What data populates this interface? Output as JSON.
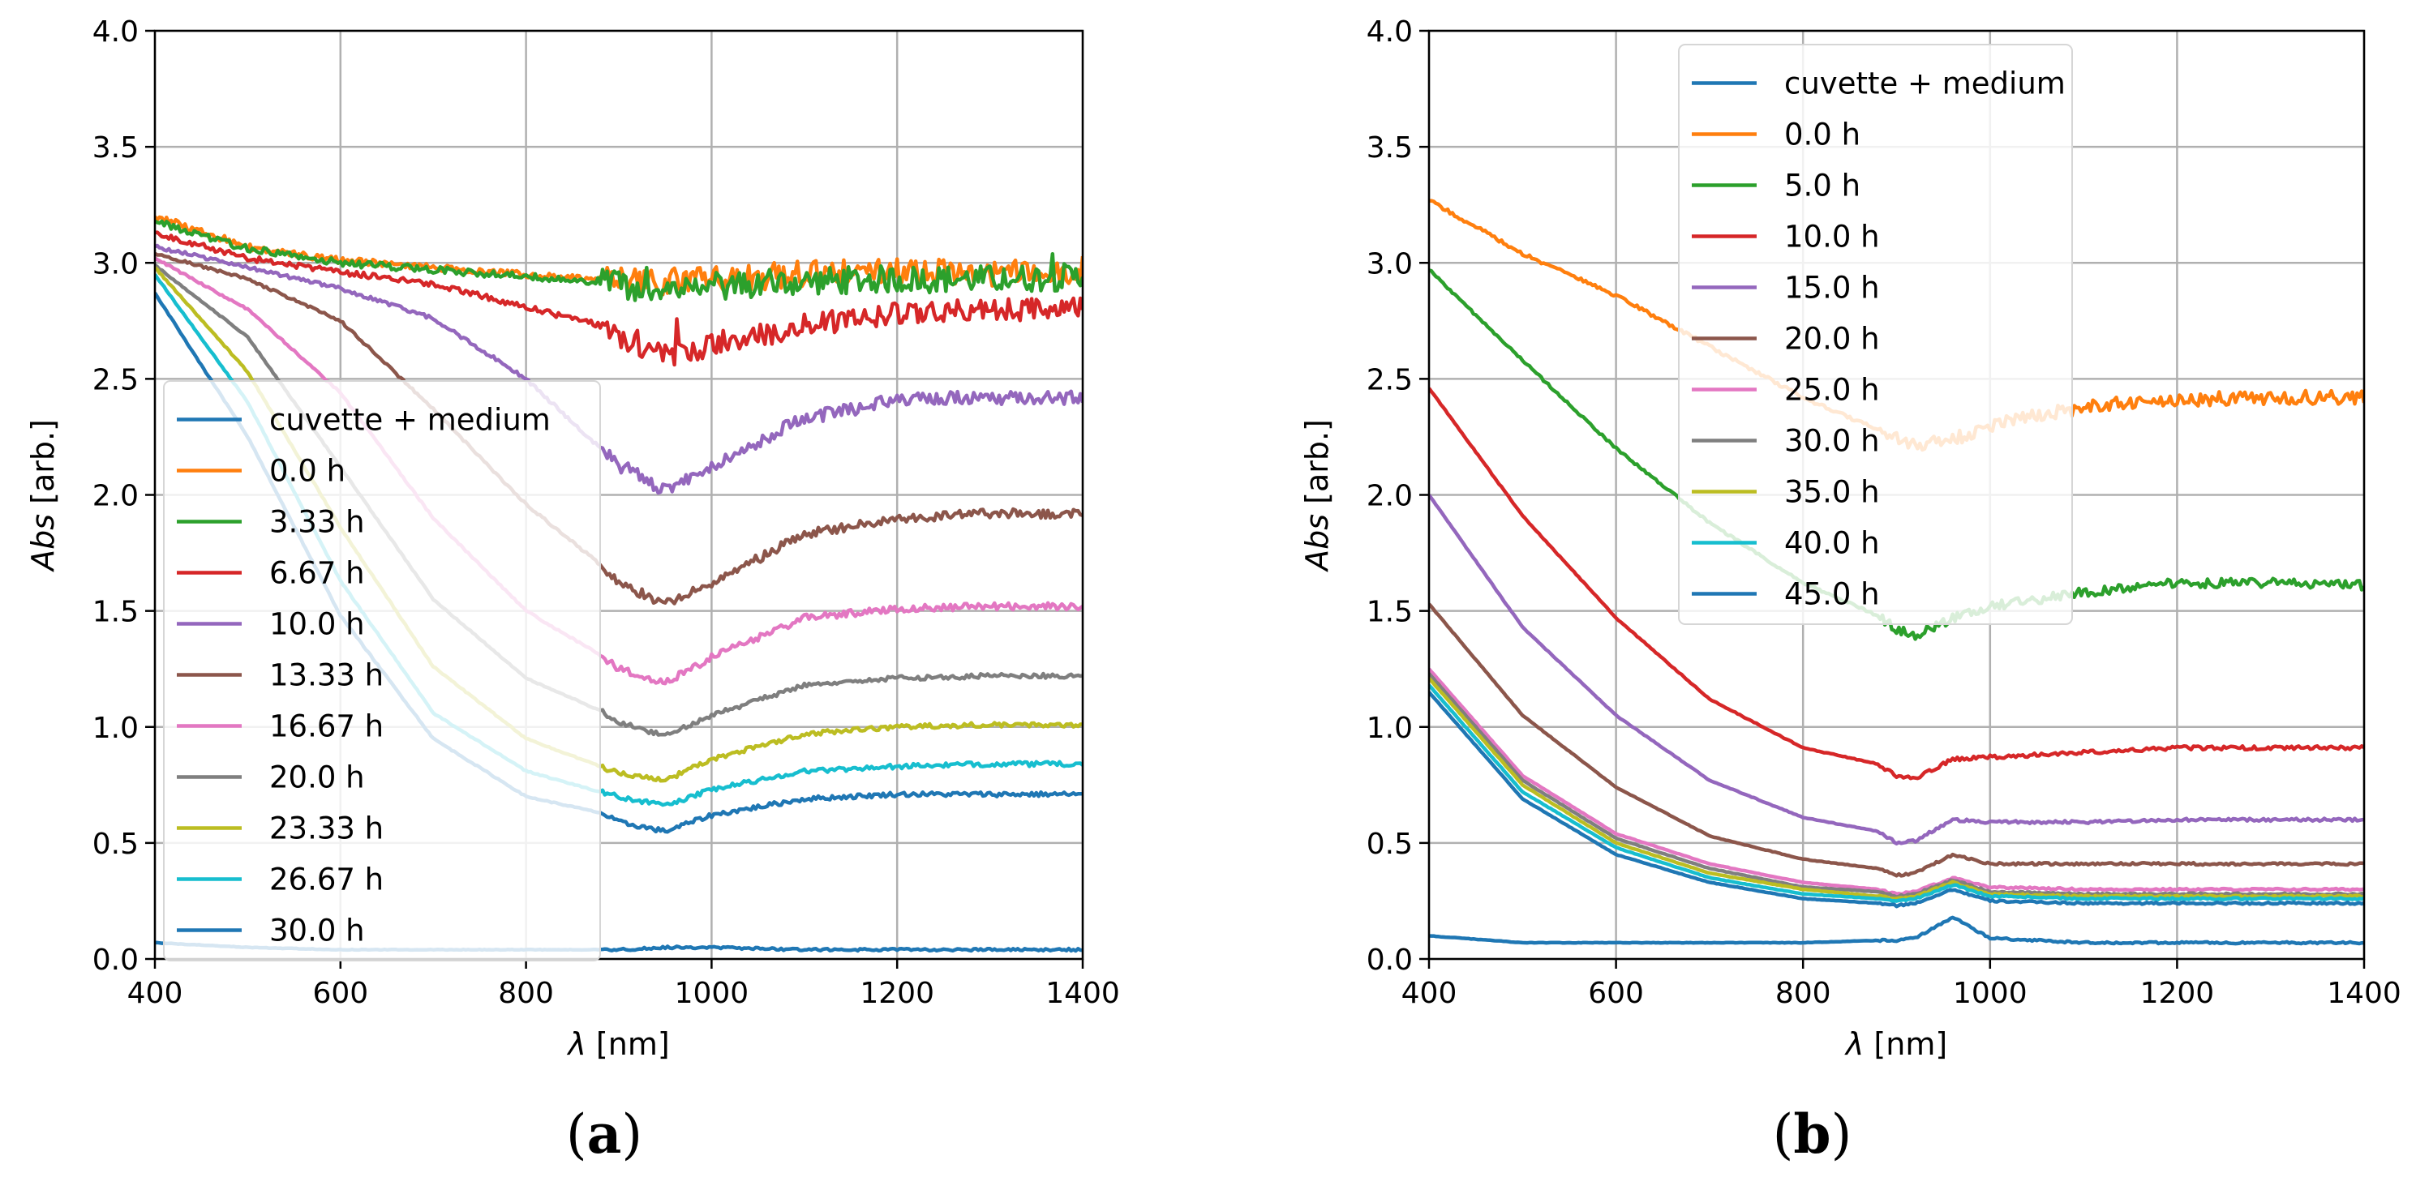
{
  "figure_labels": {
    "a": "a",
    "b": "b",
    "open": "(",
    "close": ")"
  },
  "chart_data": [
    {
      "id": "a",
      "type": "line",
      "title": "",
      "xlabel_symbol": "λ",
      "xlabel_unit": " [nm]",
      "ylabel_symbol": "Abs",
      "ylabel_unit": " [arb.]",
      "xlim": [
        400,
        1400
      ],
      "ylim": [
        0,
        4
      ],
      "xticks": [
        400,
        600,
        800,
        1000,
        1200,
        1400
      ],
      "xtick_labels": [
        "400",
        "600",
        "800",
        "1000",
        "1200",
        "1400"
      ],
      "yticks": [
        0,
        0.5,
        1,
        1.5,
        2,
        2.5,
        3,
        3.5,
        4
      ],
      "ytick_labels": [
        "0.0",
        "0.5",
        "1.0",
        "1.5",
        "2.0",
        "2.5",
        "3.0",
        "3.5",
        "4.0"
      ],
      "grid": true,
      "legend_position": "lower-left",
      "x": [
        400,
        500,
        600,
        700,
        800,
        880,
        900,
        950,
        1000,
        1100,
        1200,
        1300,
        1400
      ],
      "series": [
        {
          "name": "cuvette + medium",
          "color": "#1f77b4",
          "noise": 0.005,
          "values": [
            0.07,
            0.05,
            0.04,
            0.04,
            0.04,
            0.04,
            0.04,
            0.05,
            0.05,
            0.04,
            0.04,
            0.04,
            0.04
          ]
        },
        {
          "name": "0.0 h",
          "color": "#ff7f0e",
          "noise": 0.06,
          "values": [
            3.2,
            3.07,
            3.01,
            2.98,
            2.95,
            2.93,
            2.92,
            2.92,
            2.93,
            2.95,
            2.96,
            2.96,
            2.97
          ]
        },
        {
          "name": "3.33 h",
          "color": "#2ca02c",
          "noise": 0.06,
          "values": [
            3.18,
            3.06,
            3.0,
            2.97,
            2.94,
            2.92,
            2.9,
            2.89,
            2.9,
            2.92,
            2.93,
            2.93,
            2.94
          ]
        },
        {
          "name": "6.67 h",
          "color": "#d62728",
          "noise": 0.05,
          "values": [
            3.13,
            3.02,
            2.96,
            2.91,
            2.81,
            2.73,
            2.68,
            2.6,
            2.64,
            2.73,
            2.78,
            2.8,
            2.8
          ]
        },
        {
          "name": "10.0 h",
          "color": "#9467bd",
          "noise": 0.03,
          "values": [
            3.07,
            2.98,
            2.89,
            2.76,
            2.5,
            2.2,
            2.13,
            2.02,
            2.13,
            2.33,
            2.41,
            2.42,
            2.42
          ]
        },
        {
          "name": "13.33 h",
          "color": "#8c564b",
          "noise": 0.02,
          "values": [
            3.04,
            2.93,
            2.75,
            2.37,
            1.96,
            1.7,
            1.62,
            1.53,
            1.62,
            1.83,
            1.9,
            1.92,
            1.92
          ]
        },
        {
          "name": "16.67 h",
          "color": "#e377c2",
          "noise": 0.015,
          "values": [
            3.02,
            2.8,
            2.44,
            1.9,
            1.5,
            1.31,
            1.25,
            1.19,
            1.3,
            1.47,
            1.51,
            1.52,
            1.52
          ]
        },
        {
          "name": "20.0 h",
          "color": "#7f7f7f",
          "noise": 0.01,
          "values": [
            2.99,
            2.68,
            2.12,
            1.55,
            1.21,
            1.07,
            1.02,
            0.96,
            1.05,
            1.18,
            1.21,
            1.22,
            1.22
          ]
        },
        {
          "name": "23.33 h",
          "color": "#bcbd22",
          "noise": 0.01,
          "values": [
            2.98,
            2.53,
            1.86,
            1.26,
            0.95,
            0.83,
            0.8,
            0.77,
            0.86,
            0.97,
            1.0,
            1.01,
            1.01
          ]
        },
        {
          "name": "26.67 h",
          "color": "#17becf",
          "noise": 0.01,
          "values": [
            2.95,
            2.4,
            1.63,
            1.06,
            0.81,
            0.72,
            0.7,
            0.66,
            0.73,
            0.81,
            0.83,
            0.84,
            0.84
          ]
        },
        {
          "name": "30.0 h",
          "color": "#1f77b4",
          "noise": 0.01,
          "values": [
            2.87,
            2.25,
            1.48,
            0.95,
            0.7,
            0.63,
            0.59,
            0.55,
            0.62,
            0.69,
            0.71,
            0.71,
            0.71
          ]
        }
      ]
    },
    {
      "id": "b",
      "type": "line",
      "title": "",
      "xlabel_symbol": "λ",
      "xlabel_unit": " [nm]",
      "ylabel_symbol": "Abs",
      "ylabel_unit": " [arb.]",
      "xlim": [
        400,
        1400
      ],
      "ylim": [
        0,
        4
      ],
      "xticks": [
        400,
        600,
        800,
        1000,
        1200,
        1400
      ],
      "xtick_labels": [
        "400",
        "600",
        "800",
        "1000",
        "1200",
        "1400"
      ],
      "yticks": [
        0,
        0.5,
        1,
        1.5,
        2,
        2.5,
        3,
        3.5,
        4
      ],
      "ytick_labels": [
        "0.0",
        "0.5",
        "1.0",
        "1.5",
        "2.0",
        "2.5",
        "3.0",
        "3.5",
        "4.0"
      ],
      "grid": true,
      "legend_position": "upper-center",
      "x": [
        400,
        500,
        600,
        700,
        800,
        880,
        900,
        920,
        960,
        1000,
        1100,
        1200,
        1300,
        1400
      ],
      "series": [
        {
          "name": "cuvette + medium",
          "color": "#1f77b4",
          "noise": 0.004,
          "values": [
            0.1,
            0.07,
            0.07,
            0.07,
            0.07,
            0.08,
            0.08,
            0.09,
            0.18,
            0.09,
            0.07,
            0.07,
            0.07,
            0.07
          ]
        },
        {
          "name": "0.0 h",
          "color": "#ff7f0e",
          "noise": 0.03,
          "values": [
            3.27,
            3.04,
            2.86,
            2.64,
            2.42,
            2.28,
            2.24,
            2.22,
            2.24,
            2.3,
            2.38,
            2.41,
            2.42,
            2.42
          ]
        },
        {
          "name": "5.0 h",
          "color": "#2ca02c",
          "noise": 0.02,
          "values": [
            2.97,
            2.58,
            2.2,
            1.88,
            1.62,
            1.48,
            1.42,
            1.39,
            1.47,
            1.52,
            1.58,
            1.62,
            1.62,
            1.61
          ]
        },
        {
          "name": "10.0 h",
          "color": "#d62728",
          "noise": 0.008,
          "values": [
            2.46,
            1.91,
            1.47,
            1.12,
            0.91,
            0.84,
            0.79,
            0.78,
            0.86,
            0.87,
            0.89,
            0.91,
            0.91,
            0.91
          ]
        },
        {
          "name": "15.0 h",
          "color": "#9467bd",
          "noise": 0.006,
          "values": [
            2.0,
            1.43,
            1.05,
            0.77,
            0.61,
            0.55,
            0.5,
            0.51,
            0.6,
            0.59,
            0.59,
            0.6,
            0.6,
            0.6
          ]
        },
        {
          "name": "20.0 h",
          "color": "#8c564b",
          "noise": 0.005,
          "values": [
            1.53,
            1.05,
            0.74,
            0.53,
            0.43,
            0.39,
            0.36,
            0.37,
            0.45,
            0.41,
            0.41,
            0.41,
            0.41,
            0.41
          ]
        },
        {
          "name": "25.0 h",
          "color": "#e377c2",
          "noise": 0.004,
          "values": [
            1.25,
            0.79,
            0.54,
            0.41,
            0.33,
            0.3,
            0.28,
            0.29,
            0.35,
            0.31,
            0.3,
            0.3,
            0.3,
            0.3
          ]
        },
        {
          "name": "30.0 h",
          "color": "#7f7f7f",
          "noise": 0.004,
          "values": [
            1.23,
            0.77,
            0.52,
            0.39,
            0.31,
            0.29,
            0.27,
            0.28,
            0.34,
            0.29,
            0.28,
            0.28,
            0.28,
            0.28
          ]
        },
        {
          "name": "35.0 h",
          "color": "#bcbd22",
          "noise": 0.004,
          "values": [
            1.21,
            0.75,
            0.5,
            0.37,
            0.3,
            0.27,
            0.26,
            0.27,
            0.33,
            0.28,
            0.27,
            0.27,
            0.27,
            0.27
          ]
        },
        {
          "name": "40.0 h",
          "color": "#17becf",
          "noise": 0.004,
          "values": [
            1.18,
            0.72,
            0.48,
            0.35,
            0.28,
            0.26,
            0.25,
            0.26,
            0.32,
            0.27,
            0.26,
            0.26,
            0.26,
            0.26
          ]
        },
        {
          "name": "45.0 h",
          "color": "#1f77b4",
          "noise": 0.004,
          "values": [
            1.15,
            0.69,
            0.45,
            0.33,
            0.26,
            0.24,
            0.23,
            0.24,
            0.3,
            0.25,
            0.24,
            0.24,
            0.24,
            0.24
          ]
        }
      ]
    }
  ]
}
